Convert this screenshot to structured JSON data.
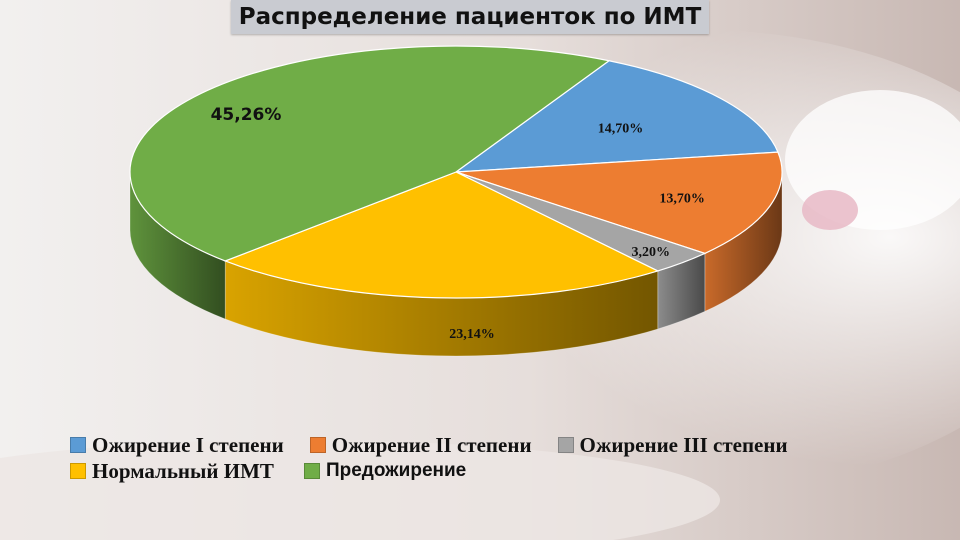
{
  "title": "Распределение пациенток по ИМТ",
  "chart_data": {
    "type": "pie",
    "title": "Распределение пациенток по ИМТ",
    "slices": [
      {
        "name": "Ожирение I степени",
        "value": 14.7,
        "label": "14,70%",
        "color": "#5b9bd5"
      },
      {
        "name": "Ожирение II степени",
        "value": 13.7,
        "label": "13,70%",
        "color": "#ed7d31"
      },
      {
        "name": "Ожирение III степени",
        "value": 3.2,
        "label": "3,20%",
        "color": "#a5a5a5"
      },
      {
        "name": "Нормальный ИМТ",
        "value": 23.14,
        "label": "23,14%",
        "color": "#ffc000"
      },
      {
        "name": "Предожирение",
        "value": 45.26,
        "label": "45,26%",
        "color": "#70ad47"
      }
    ],
    "legend_position": "bottom"
  },
  "legend": {
    "row1": [
      {
        "label": "Ожирение I степени",
        "color": "#5b9bd5"
      },
      {
        "label": "Ожирение II степени",
        "color": "#ed7d31"
      },
      {
        "label": "Ожирение III степени",
        "color": "#a5a5a5"
      }
    ],
    "row2": [
      {
        "label": "Нормальный ИМТ",
        "color": "#ffc000"
      },
      {
        "label": "Предожирение",
        "color": "#70ad47"
      }
    ]
  }
}
